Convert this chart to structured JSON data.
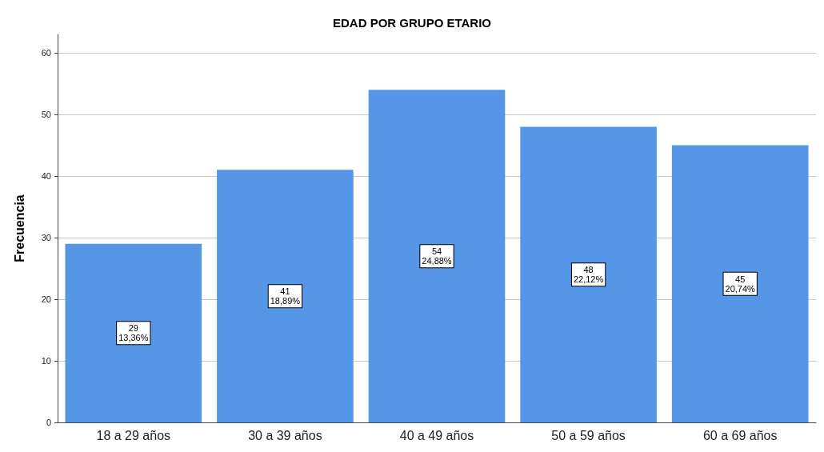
{
  "chart_data": {
    "type": "bar",
    "title": "EDAD POR GRUPO ETARIO",
    "ylabel": "Frecuencia",
    "categories": [
      "18 a 29 años",
      "30 a 39 años",
      "40 a 49 años",
      "50 a 59 años",
      "60 a 69 años"
    ],
    "values": [
      29,
      41,
      54,
      48,
      45
    ],
    "color": "#5596e6",
    "value_labels": [
      "29\n13,36%",
      "41\n18,89%",
      "54\n24,88%",
      "48\n22,12%",
      "45\n20,74%"
    ],
    "ylim": [
      0,
      63
    ],
    "yticks": [
      0,
      10,
      20,
      30,
      40,
      50,
      60
    ],
    "grid": "y"
  }
}
